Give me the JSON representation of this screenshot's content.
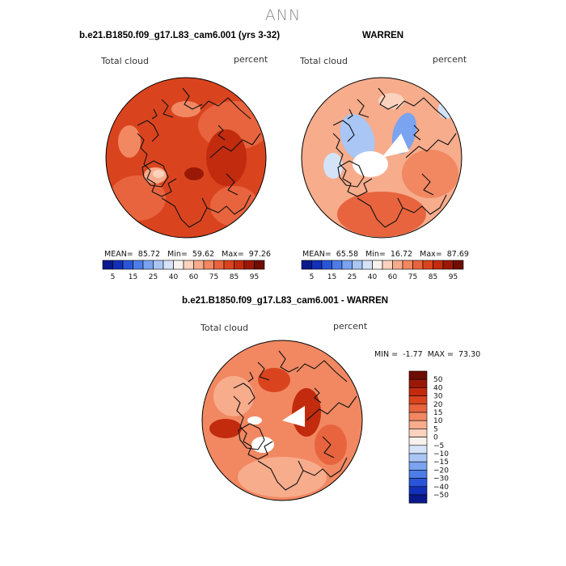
{
  "page": {
    "title": "ANN"
  },
  "chart_data": [
    {
      "type": "heatmap",
      "projection": "north-polar-stereographic",
      "title": "b.e21.B1850.f09_g17.L83_cam6.001 (yrs 3-32)",
      "variable": "Total cloud",
      "units": "percent",
      "stats": {
        "mean_label": "MEAN=",
        "mean": "85.72",
        "min_label": "Min=",
        "min": "59.62",
        "max_label": "Max=",
        "max": "97.26"
      },
      "colorbar": {
        "orientation": "horizontal",
        "levels": [
          "5",
          "15",
          "25",
          "40",
          "60",
          "75",
          "85",
          "95"
        ],
        "colors": [
          "#0a1a8c",
          "#1230b8",
          "#2a55d8",
          "#4d7de8",
          "#7aa3f0",
          "#a9c6f5",
          "#d4e3f8",
          "#f7f2ee",
          "#fbd2bd",
          "#f7ac8c",
          "#f18862",
          "#e8643e",
          "#d9441f",
          "#c22b0e",
          "#9a1906",
          "#6e0d02"
        ]
      }
    },
    {
      "type": "heatmap",
      "projection": "north-polar-stereographic",
      "title": "WARREN",
      "variable": "Total cloud",
      "units": "percent",
      "stats": {
        "mean_label": "MEAN=",
        "mean": "65.58",
        "min_label": "Min=",
        "min": "16.72",
        "max_label": "Max=",
        "max": "87.69"
      },
      "colorbar": {
        "orientation": "horizontal",
        "levels": [
          "5",
          "15",
          "25",
          "40",
          "60",
          "75",
          "85",
          "95"
        ],
        "colors": [
          "#0a1a8c",
          "#1230b8",
          "#2a55d8",
          "#4d7de8",
          "#7aa3f0",
          "#a9c6f5",
          "#d4e3f8",
          "#f7f2ee",
          "#fbd2bd",
          "#f7ac8c",
          "#f18862",
          "#e8643e",
          "#d9441f",
          "#c22b0e",
          "#9a1906",
          "#6e0d02"
        ]
      }
    },
    {
      "type": "heatmap",
      "projection": "north-polar-stereographic",
      "title": "b.e21.B1850.f09_g17.L83_cam6.001 - WARREN",
      "variable": "Total cloud",
      "units": "percent",
      "stats": {
        "min_label": "MIN =",
        "min": "-1.77",
        "max_label": "MAX =",
        "max": "73.30"
      },
      "colorbar": {
        "orientation": "vertical",
        "levels": [
          "50",
          "40",
          "30",
          "20",
          "15",
          "10",
          "5",
          "0",
          "−5",
          "−10",
          "−15",
          "−20",
          "−30",
          "−40",
          "−50"
        ],
        "colors": [
          "#6e0d02",
          "#9a1906",
          "#c22b0e",
          "#d9441f",
          "#e8643e",
          "#f18862",
          "#f7ac8c",
          "#fbd2bd",
          "#f7f2ee",
          "#d4e3f8",
          "#a9c6f5",
          "#7aa3f0",
          "#4d7de8",
          "#2a55d8",
          "#1230b8",
          "#0a1a8c"
        ]
      }
    }
  ]
}
